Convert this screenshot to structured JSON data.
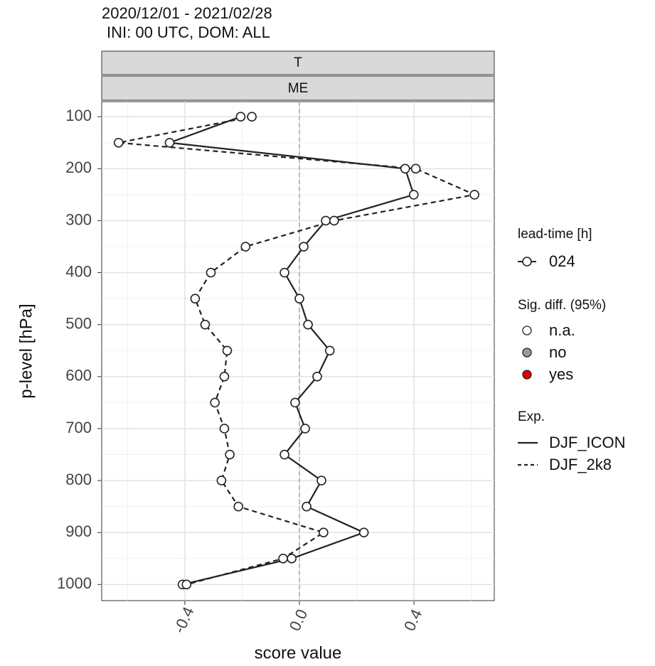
{
  "chart_data": {
    "type": "line",
    "title_lines": [
      "2020/12/01 - 2021/02/28",
      "INI: 00 UTC, DOM:  ALL"
    ],
    "strips": [
      "T",
      "ME"
    ],
    "x_label": "score value",
    "y_label": "p-level [hPa]",
    "y": [
      100,
      150,
      200,
      250,
      300,
      350,
      400,
      450,
      500,
      550,
      600,
      650,
      700,
      750,
      800,
      850,
      900,
      950,
      1000
    ],
    "series": [
      {
        "name": "DJF_ICON",
        "color": "#222222",
        "dash": "solid",
        "values": [
          -0.205,
          -0.453,
          0.369,
          0.399,
          0.092,
          0.015,
          -0.052,
          0.0,
          0.03,
          0.106,
          0.062,
          -0.015,
          0.02,
          -0.052,
          0.077,
          0.025,
          0.225,
          -0.027,
          -0.408
        ]
      },
      {
        "name": "DJF_2k8",
        "color": "#222222",
        "dash": "dashed",
        "values": [
          -0.166,
          -0.631,
          0.406,
          0.611,
          0.121,
          -0.188,
          -0.309,
          -0.364,
          -0.329,
          -0.252,
          -0.262,
          -0.295,
          -0.262,
          -0.243,
          -0.272,
          -0.213,
          0.084,
          -0.057,
          -0.394
        ]
      }
    ],
    "xlim": [
      -0.69,
      0.68
    ],
    "xticks": [
      -0.4,
      {
        "value": 0,
        "label": "0.0"
      },
      0.4
    ],
    "ylim": [
      71,
      1031
    ],
    "y_inverted": true,
    "yticks": [
      100,
      200,
      300,
      400,
      500,
      600,
      700,
      800,
      900,
      1000
    ],
    "ref_line": 0,
    "grid": true,
    "legend": {
      "lead_title": "lead-time [h]",
      "lead_item": "024",
      "sig_title": "Sig. diff. (95%)",
      "sig_items": [
        {
          "label": "n.a.",
          "color": "#ffffff"
        },
        {
          "label": "no",
          "color": "#9a9a9a"
        },
        {
          "label": "yes",
          "color": "#e00000"
        }
      ],
      "exp_title": "Exp."
    }
  }
}
